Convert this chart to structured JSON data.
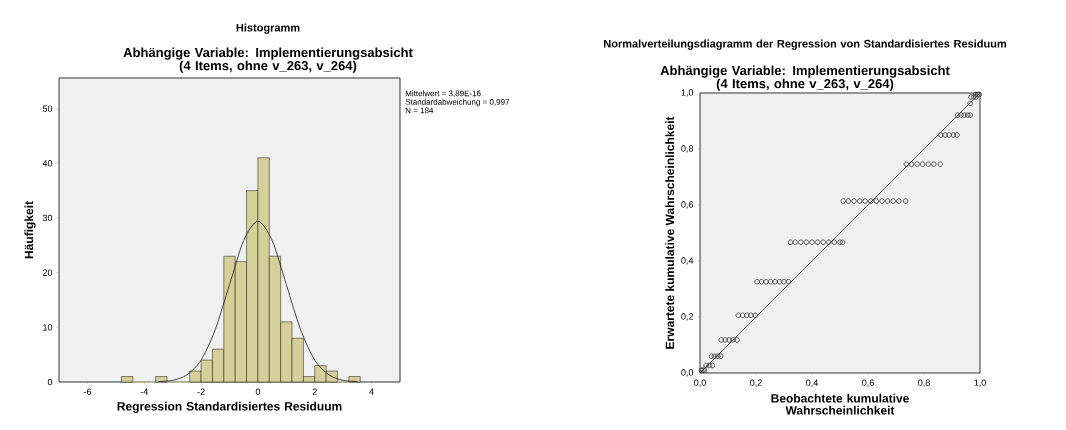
{
  "chart_data": [
    {
      "type": "histogram",
      "title": "Histogramm",
      "subtitle": "Abhängige Variable: Implementierungsabsicht (4 Items, ohne v_263, v_264)",
      "xlabel": "Regression Standardisiertes Residuum",
      "ylabel": "Häufigkeit",
      "annotations": [
        "Mittelwert = 3,89E-16",
        "Standardabweichung = 0,997",
        "N = 184"
      ],
      "series": [
        {
          "color": "#d5d09a",
          "bins": [
            -4.8,
            -4.4,
            -4.0,
            -3.6,
            -3.2,
            -2.8,
            -2.4,
            -2.0,
            -1.6,
            -1.2,
            -0.8,
            -0.4,
            0,
            0.4,
            0.8,
            1.2,
            1.6,
            2.0,
            2.4,
            2.8,
            3.2,
            3.6
          ],
          "values": [
            1,
            0,
            0,
            1,
            0,
            0,
            2,
            4,
            6,
            23,
            22,
            35,
            41,
            23,
            11,
            8,
            1,
            3,
            2,
            0,
            1
          ]
        },
        {
          "type": "line",
          "color": "#1a1a1a",
          "x": [
            -3.5,
            -3,
            -2.5,
            -2,
            -1.5,
            -1,
            -0.5,
            0,
            0.5,
            1,
            1.5,
            2,
            2.5,
            3,
            3.5
          ],
          "values": [
            0.1,
            0.3,
            1.3,
            4.0,
            9.6,
            17.8,
            25.9,
            29.4,
            25.9,
            17.8,
            9.6,
            4.0,
            1.3,
            0.3,
            0.1
          ]
        }
      ],
      "xlim": [
        -7,
        5
      ],
      "ylim": [
        0,
        55.6
      ],
      "xticks": [
        -6,
        -4,
        -2,
        0,
        2,
        4
      ],
      "yticks": [
        0,
        10,
        20,
        30,
        40,
        50
      ]
    },
    {
      "type": "scatter",
      "title": "Normalverteilungsdiagramm der Regression von Standardisiertes Residuum",
      "subtitle": "Abhängige Variable: Implementierungsabsicht (4 Items, ohne v_263, v_264)",
      "xlabel": "Beobachtete kumulative Wahrscheinlichkeit",
      "ylabel": "Erwartete kumulative Wahrscheinlichkeit",
      "series": [
        {
          "color": "#333333",
          "marker": "circle",
          "x": [
            0.005,
            0.011,
            0.016,
            0.022,
            0.033,
            0.044,
            0.041,
            0.052,
            0.063,
            0.074,
            0.076,
            0.09,
            0.104,
            0.118,
            0.132,
            0.137,
            0.152,
            0.167,
            0.182,
            0.197,
            0.204,
            0.22,
            0.236,
            0.252,
            0.268,
            0.284,
            0.3,
            0.316,
            0.323,
            0.34,
            0.36,
            0.38,
            0.4,
            0.42,
            0.44,
            0.46,
            0.48,
            0.5,
            0.509,
            0.512,
            0.53,
            0.55,
            0.57,
            0.59,
            0.61,
            0.63,
            0.65,
            0.67,
            0.69,
            0.71,
            0.734,
            0.737,
            0.755,
            0.775,
            0.795,
            0.815,
            0.835,
            0.858,
            0.86,
            0.875,
            0.89,
            0.905,
            0.918,
            0.92,
            0.932,
            0.944,
            0.956,
            0.965,
            0.965,
            0.968,
            0.978,
            0.985,
            0.985,
            0.992,
            0.998
          ],
          "values": [
            0.01,
            0.01,
            0.01,
            0.027,
            0.027,
            0.027,
            0.06,
            0.06,
            0.06,
            0.06,
            0.118,
            0.118,
            0.118,
            0.118,
            0.118,
            0.206,
            0.206,
            0.206,
            0.206,
            0.206,
            0.326,
            0.326,
            0.326,
            0.326,
            0.326,
            0.326,
            0.326,
            0.326,
            0.467,
            0.467,
            0.467,
            0.467,
            0.467,
            0.467,
            0.467,
            0.467,
            0.467,
            0.467,
            0.467,
            0.614,
            0.614,
            0.614,
            0.614,
            0.614,
            0.614,
            0.614,
            0.614,
            0.614,
            0.614,
            0.614,
            0.614,
            0.746,
            0.746,
            0.746,
            0.746,
            0.746,
            0.746,
            0.746,
            0.85,
            0.85,
            0.85,
            0.85,
            0.85,
            0.921,
            0.921,
            0.921,
            0.921,
            0.921,
            0.963,
            0.986,
            0.986,
            0.986,
            0.995,
            0.995,
            0.995
          ]
        },
        {
          "type": "line",
          "color": "#1a1a1a",
          "x": [
            0,
            1
          ],
          "values": [
            0,
            1
          ]
        }
      ],
      "xlim": [
        0,
        1
      ],
      "ylim": [
        0,
        1
      ],
      "xticks": [
        {
          "value": 0,
          "label": "0,0"
        },
        {
          "value": 0.2,
          "label": "0,2"
        },
        {
          "value": 0.4,
          "label": "0,4"
        },
        {
          "value": 0.6,
          "label": "0,6"
        },
        {
          "value": 0.8,
          "label": "0,8"
        },
        {
          "value": 1,
          "label": "1,0"
        }
      ],
      "yticks": [
        {
          "value": 0,
          "label": "0,0"
        },
        {
          "value": 0.2,
          "label": "0,2"
        },
        {
          "value": 0.4,
          "label": "0,4"
        },
        {
          "value": 0.6,
          "label": "0,6"
        },
        {
          "value": 0.8,
          "label": "0,8"
        },
        {
          "value": 1,
          "label": "1,0"
        }
      ]
    }
  ]
}
